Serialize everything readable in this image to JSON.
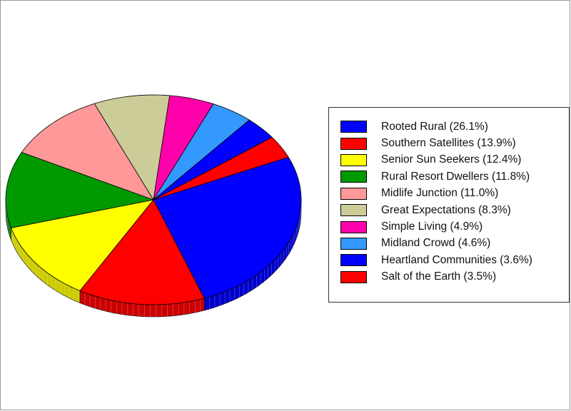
{
  "chart_data": {
    "type": "pie",
    "title": "",
    "legend_position": "right",
    "slices": [
      {
        "label": "Rooted Rural (26.1%)",
        "value": 26.1,
        "color": "#0000ff",
        "side_color": "#0000cc"
      },
      {
        "label": "Southern Satellites (13.9%)",
        "value": 13.9,
        "color": "#ff0000",
        "side_color": "#cc0000"
      },
      {
        "label": "Senior Sun Seekers (12.4%)",
        "value": 12.4,
        "color": "#ffff00",
        "side_color": "#cccc00"
      },
      {
        "label": "Rural Resort Dwellers (11.8%)",
        "value": 11.8,
        "color": "#009900",
        "side_color": "#007700"
      },
      {
        "label": "Midlife Junction (11.0%)",
        "value": 11.0,
        "color": "#ff9999",
        "side_color": "#cc7a7a"
      },
      {
        "label": "Great Expectations (8.3%)",
        "value": 8.3,
        "color": "#cccc99",
        "side_color": "#a3a37a"
      },
      {
        "label": "Simple Living (4.9%)",
        "value": 4.9,
        "color": "#ff00aa",
        "side_color": "#cc0088"
      },
      {
        "label": "Midland Crowd (4.6%)",
        "value": 4.6,
        "color": "#3399ff",
        "side_color": "#297acc"
      },
      {
        "label": "Heartland Communities (3.6%)",
        "value": 3.6,
        "color": "#0000ff",
        "side_color": "#0000cc"
      },
      {
        "label": "Salt of the Earth (3.5%)",
        "value": 3.5,
        "color": "#ff0000",
        "side_color": "#cc0000"
      }
    ]
  }
}
